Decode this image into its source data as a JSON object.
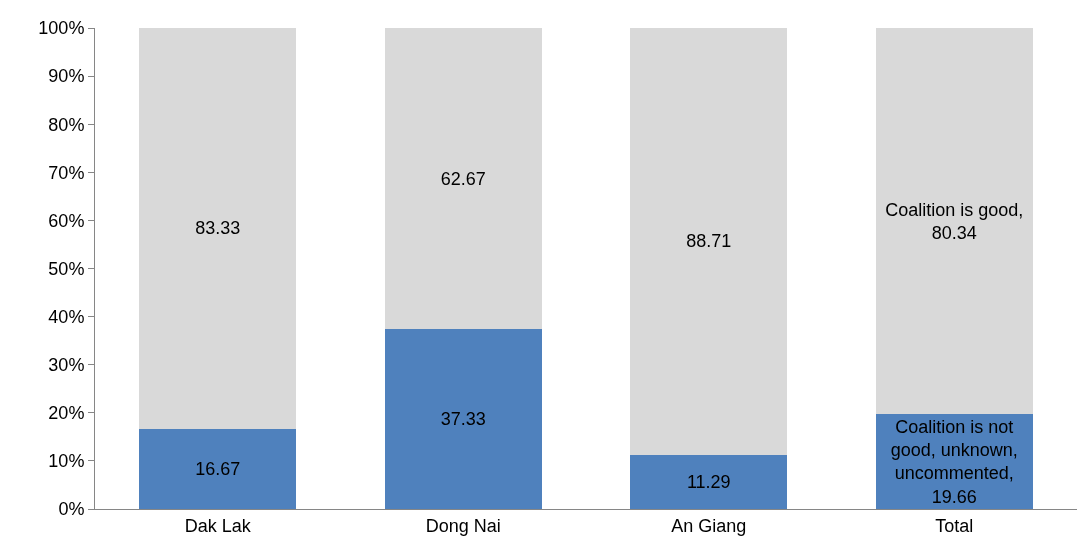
{
  "chart_data": {
    "type": "bar",
    "stacked": true,
    "categories": [
      "Dak Lak",
      "Dong Nai",
      "An Giang",
      "Total"
    ],
    "series": [
      {
        "color": "#4f81bd",
        "values": [
          16.67,
          37.33,
          11.29,
          19.66
        ],
        "value_labels": [
          "16.67",
          "37.33",
          "11.29",
          "Coalition is not good, unknown, uncommented, 19.66"
        ]
      },
      {
        "color": "#d9d9d9",
        "values": [
          83.33,
          62.67,
          88.71,
          80.34
        ],
        "value_labels": [
          "83.33",
          "62.67",
          "88.71",
          "Coalition is good, 80.34"
        ]
      }
    ],
    "ylim": [
      0,
      100
    ],
    "yticks": [
      {
        "value": 0,
        "label": "0%"
      },
      {
        "value": 10,
        "label": "10%"
      },
      {
        "value": 20,
        "label": "20%"
      },
      {
        "value": 30,
        "label": "30%"
      },
      {
        "value": 40,
        "label": "40%"
      },
      {
        "value": 50,
        "label": "50%"
      },
      {
        "value": 60,
        "label": "60%"
      },
      {
        "value": 70,
        "label": "70%"
      },
      {
        "value": 80,
        "label": "80%"
      },
      {
        "value": 90,
        "label": "90%"
      },
      {
        "value": 100,
        "label": "100%"
      }
    ],
    "legend": false
  }
}
